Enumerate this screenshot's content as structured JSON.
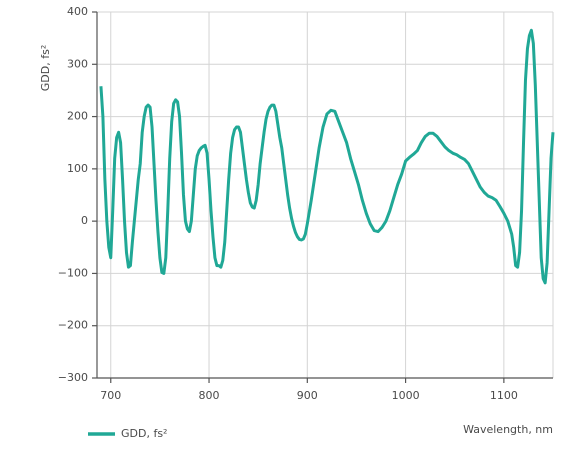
{
  "chart_data": {
    "type": "line",
    "ylabel": "GDD, fs²",
    "xlabel": "Wavelength, nm",
    "xlim": [
      686,
      1150
    ],
    "ylim": [
      -300,
      400
    ],
    "xticks": [
      700,
      800,
      900,
      1000,
      1100
    ],
    "yticks": [
      {
        "value": -300,
        "label": "−300"
      },
      {
        "value": -200,
        "label": "−200"
      },
      {
        "value": -100,
        "label": "−100"
      },
      0,
      100,
      200,
      300,
      400
    ],
    "grid": true,
    "legend": "bottom-left",
    "x": [
      690,
      692,
      694,
      696,
      698,
      700,
      702,
      704,
      706,
      708,
      710,
      712,
      714,
      716,
      718,
      720,
      722,
      724,
      726,
      728,
      730,
      732,
      734,
      736,
      738,
      740,
      742,
      744,
      746,
      748,
      750,
      752,
      754,
      756,
      758,
      760,
      762,
      764,
      766,
      768,
      770,
      772,
      774,
      776,
      778,
      780,
      782,
      784,
      786,
      788,
      790,
      792,
      794,
      796,
      798,
      800,
      802,
      804,
      806,
      808,
      810,
      812,
      814,
      816,
      818,
      820,
      822,
      824,
      826,
      828,
      830,
      832,
      834,
      836,
      838,
      840,
      842,
      844,
      846,
      848,
      850,
      852,
      854,
      856,
      858,
      860,
      862,
      864,
      866,
      868,
      870,
      872,
      874,
      876,
      878,
      880,
      882,
      884,
      886,
      888,
      890,
      892,
      894,
      896,
      898,
      900,
      904,
      908,
      912,
      916,
      920,
      924,
      928,
      932,
      936,
      940,
      944,
      948,
      952,
      956,
      960,
      964,
      968,
      972,
      976,
      980,
      984,
      988,
      992,
      996,
      1000,
      1004,
      1008,
      1012,
      1016,
      1020,
      1024,
      1028,
      1032,
      1036,
      1040,
      1044,
      1048,
      1052,
      1056,
      1060,
      1064,
      1068,
      1072,
      1076,
      1080,
      1084,
      1088,
      1092,
      1096,
      1100,
      1104,
      1108,
      1110,
      1112,
      1114,
      1116,
      1118,
      1120,
      1122,
      1124,
      1126,
      1128,
      1130,
      1132,
      1134,
      1136,
      1138,
      1140,
      1142,
      1144,
      1146,
      1148,
      1150
    ],
    "series": [
      {
        "name": "GDD, fs²",
        "color": "#20a896",
        "values": [
          258,
          200,
          80,
          0,
          -50,
          -70,
          20,
          120,
          160,
          170,
          150,
          80,
          0,
          -60,
          -88,
          -85,
          -40,
          0,
          40,
          80,
          110,
          170,
          200,
          218,
          222,
          218,
          180,
          110,
          40,
          -20,
          -70,
          -98,
          -100,
          -70,
          20,
          120,
          190,
          225,
          232,
          228,
          200,
          130,
          50,
          0,
          -15,
          -20,
          0,
          50,
          100,
          125,
          135,
          140,
          143,
          145,
          130,
          80,
          20,
          -30,
          -70,
          -85,
          -85,
          -88,
          -75,
          -40,
          20,
          80,
          130,
          160,
          175,
          180,
          180,
          170,
          140,
          110,
          80,
          55,
          35,
          27,
          25,
          40,
          70,
          110,
          140,
          170,
          195,
          210,
          218,
          222,
          222,
          210,
          185,
          160,
          140,
          110,
          80,
          50,
          25,
          5,
          -10,
          -22,
          -30,
          -35,
          -36,
          -34,
          -25,
          -5,
          40,
          90,
          140,
          180,
          205,
          212,
          210,
          190,
          170,
          150,
          120,
          95,
          70,
          40,
          15,
          -5,
          -18,
          -20,
          -12,
          0,
          20,
          45,
          70,
          90,
          115,
          122,
          128,
          135,
          150,
          162,
          168,
          168,
          162,
          152,
          142,
          135,
          130,
          127,
          122,
          118,
          110,
          95,
          80,
          65,
          55,
          48,
          45,
          40,
          28,
          15,
          0,
          -25,
          -50,
          -85,
          -88,
          -60,
          20,
          150,
          270,
          330,
          355,
          365,
          340,
          260,
          150,
          40,
          -70,
          -110,
          -118,
          -80,
          20,
          120,
          170
        ]
      }
    ]
  }
}
